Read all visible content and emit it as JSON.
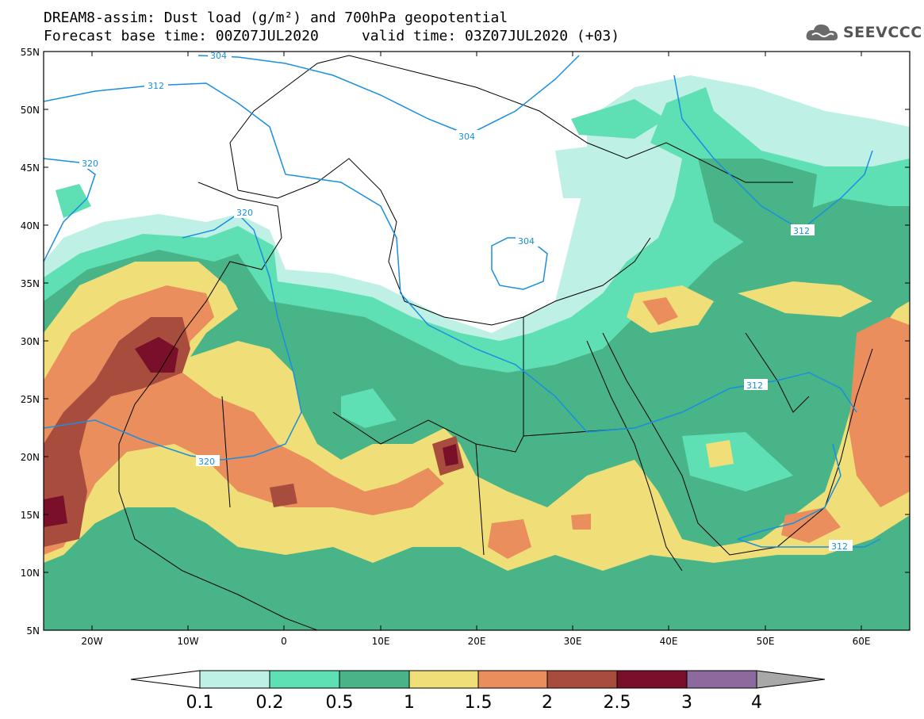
{
  "title": {
    "line1": "DREAM8-assim: Dust load (g/m²) and 700hPa geopotential",
    "line2": "Forecast base time: 00Z07JUL2020     valid time: 03Z07JUL2020 (+03)"
  },
  "logo": {
    "text": "SEEVCCC",
    "icon": "cloud-icon"
  },
  "axes": {
    "lat_labels": [
      "55N",
      "50N",
      "45N",
      "40N",
      "35N",
      "30N",
      "25N",
      "20N",
      "15N",
      "10N",
      "5N"
    ],
    "lon_labels": [
      "20W",
      "10W",
      "0",
      "10E",
      "20E",
      "30E",
      "40E",
      "50E",
      "60E"
    ]
  },
  "contours": [
    {
      "label": "304"
    },
    {
      "label": "312"
    },
    {
      "label": "304"
    },
    {
      "label": "320"
    },
    {
      "label": "320"
    },
    {
      "label": "304"
    },
    {
      "label": "312"
    },
    {
      "label": "320"
    },
    {
      "label": "312"
    },
    {
      "label": "312"
    }
  ],
  "colorbar": {
    "labels": [
      "0.1",
      "0.2",
      "0.5",
      "1",
      "1.5",
      "2",
      "2.5",
      "3",
      "4"
    ],
    "colors": [
      "#bff0e6",
      "#5fdfb4",
      "#48b487",
      "#f0df78",
      "#e98e5c",
      "#a84c3e",
      "#7a0f2a",
      "#8c6a9e"
    ],
    "under_color": "#ffffff",
    "over_color": "#a8a8a8"
  },
  "colors": {
    "contour": "#1a8fe0",
    "land_outline": "#000000"
  }
}
